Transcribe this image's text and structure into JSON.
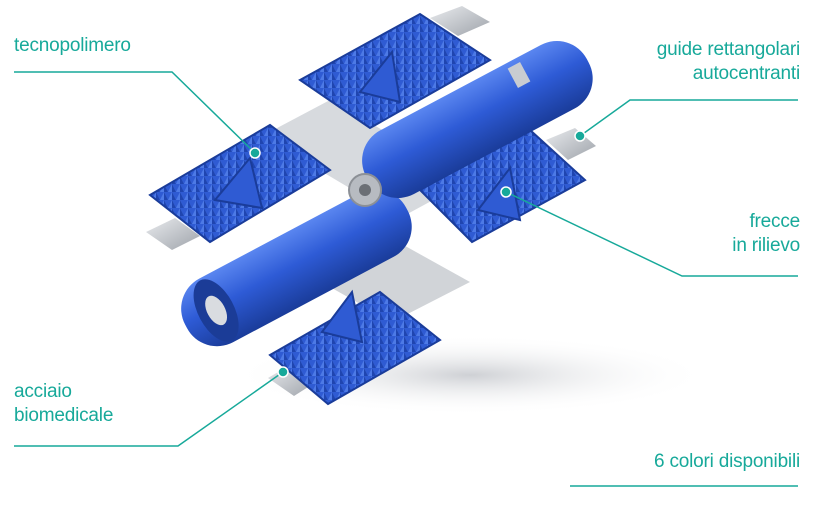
{
  "labels": {
    "tecnopolimero": "tecnopolimero",
    "guide_line1": "guide rettangolari",
    "guide_line2": "autocentranti",
    "frecce_line1": "frecce",
    "frecce_line2": "in rilievo",
    "acciaio_line1": "acciaio",
    "acciaio_line2": "biomedicale",
    "colori": "6 colori disponibili"
  },
  "colors": {
    "accent": "#17a99a",
    "polymer_blue": "#2f5bd3",
    "steel": "#c8cbd0"
  }
}
